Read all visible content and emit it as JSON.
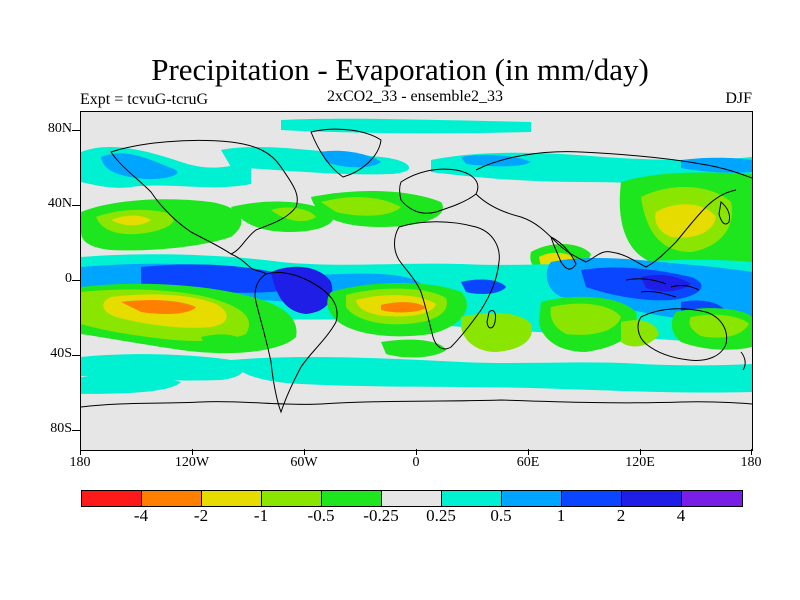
{
  "title": "Precipitation - Evaporation (in mm/day)",
  "subtitle_left": "Expt = tcvuG-tcruG",
  "subtitle_center": "2xCO2_33 - ensemble2_33",
  "subtitle_right": "DJF",
  "y_ticks": [
    "80N",
    "40N",
    "0",
    "40S",
    "80S"
  ],
  "x_ticks": [
    "180",
    "120W",
    "60W",
    "0",
    "60E",
    "120E",
    "180"
  ],
  "colorbar": {
    "colors": [
      "#ff1a1a",
      "#ff8000",
      "#e6dc00",
      "#8ae600",
      "#1ee61e",
      "#e6e6e6",
      "#00f0d2",
      "#00a5ff",
      "#0a46ff",
      "#1e1ee6",
      "#781ee6"
    ],
    "labels": [
      "-4",
      "-2",
      "-1",
      "-0.5",
      "-0.25",
      "0.25",
      "0.5",
      "1",
      "2",
      "4"
    ]
  },
  "colors": {
    "background_land_neutral": "#e6e6e6",
    "coastline": "#000000"
  }
}
